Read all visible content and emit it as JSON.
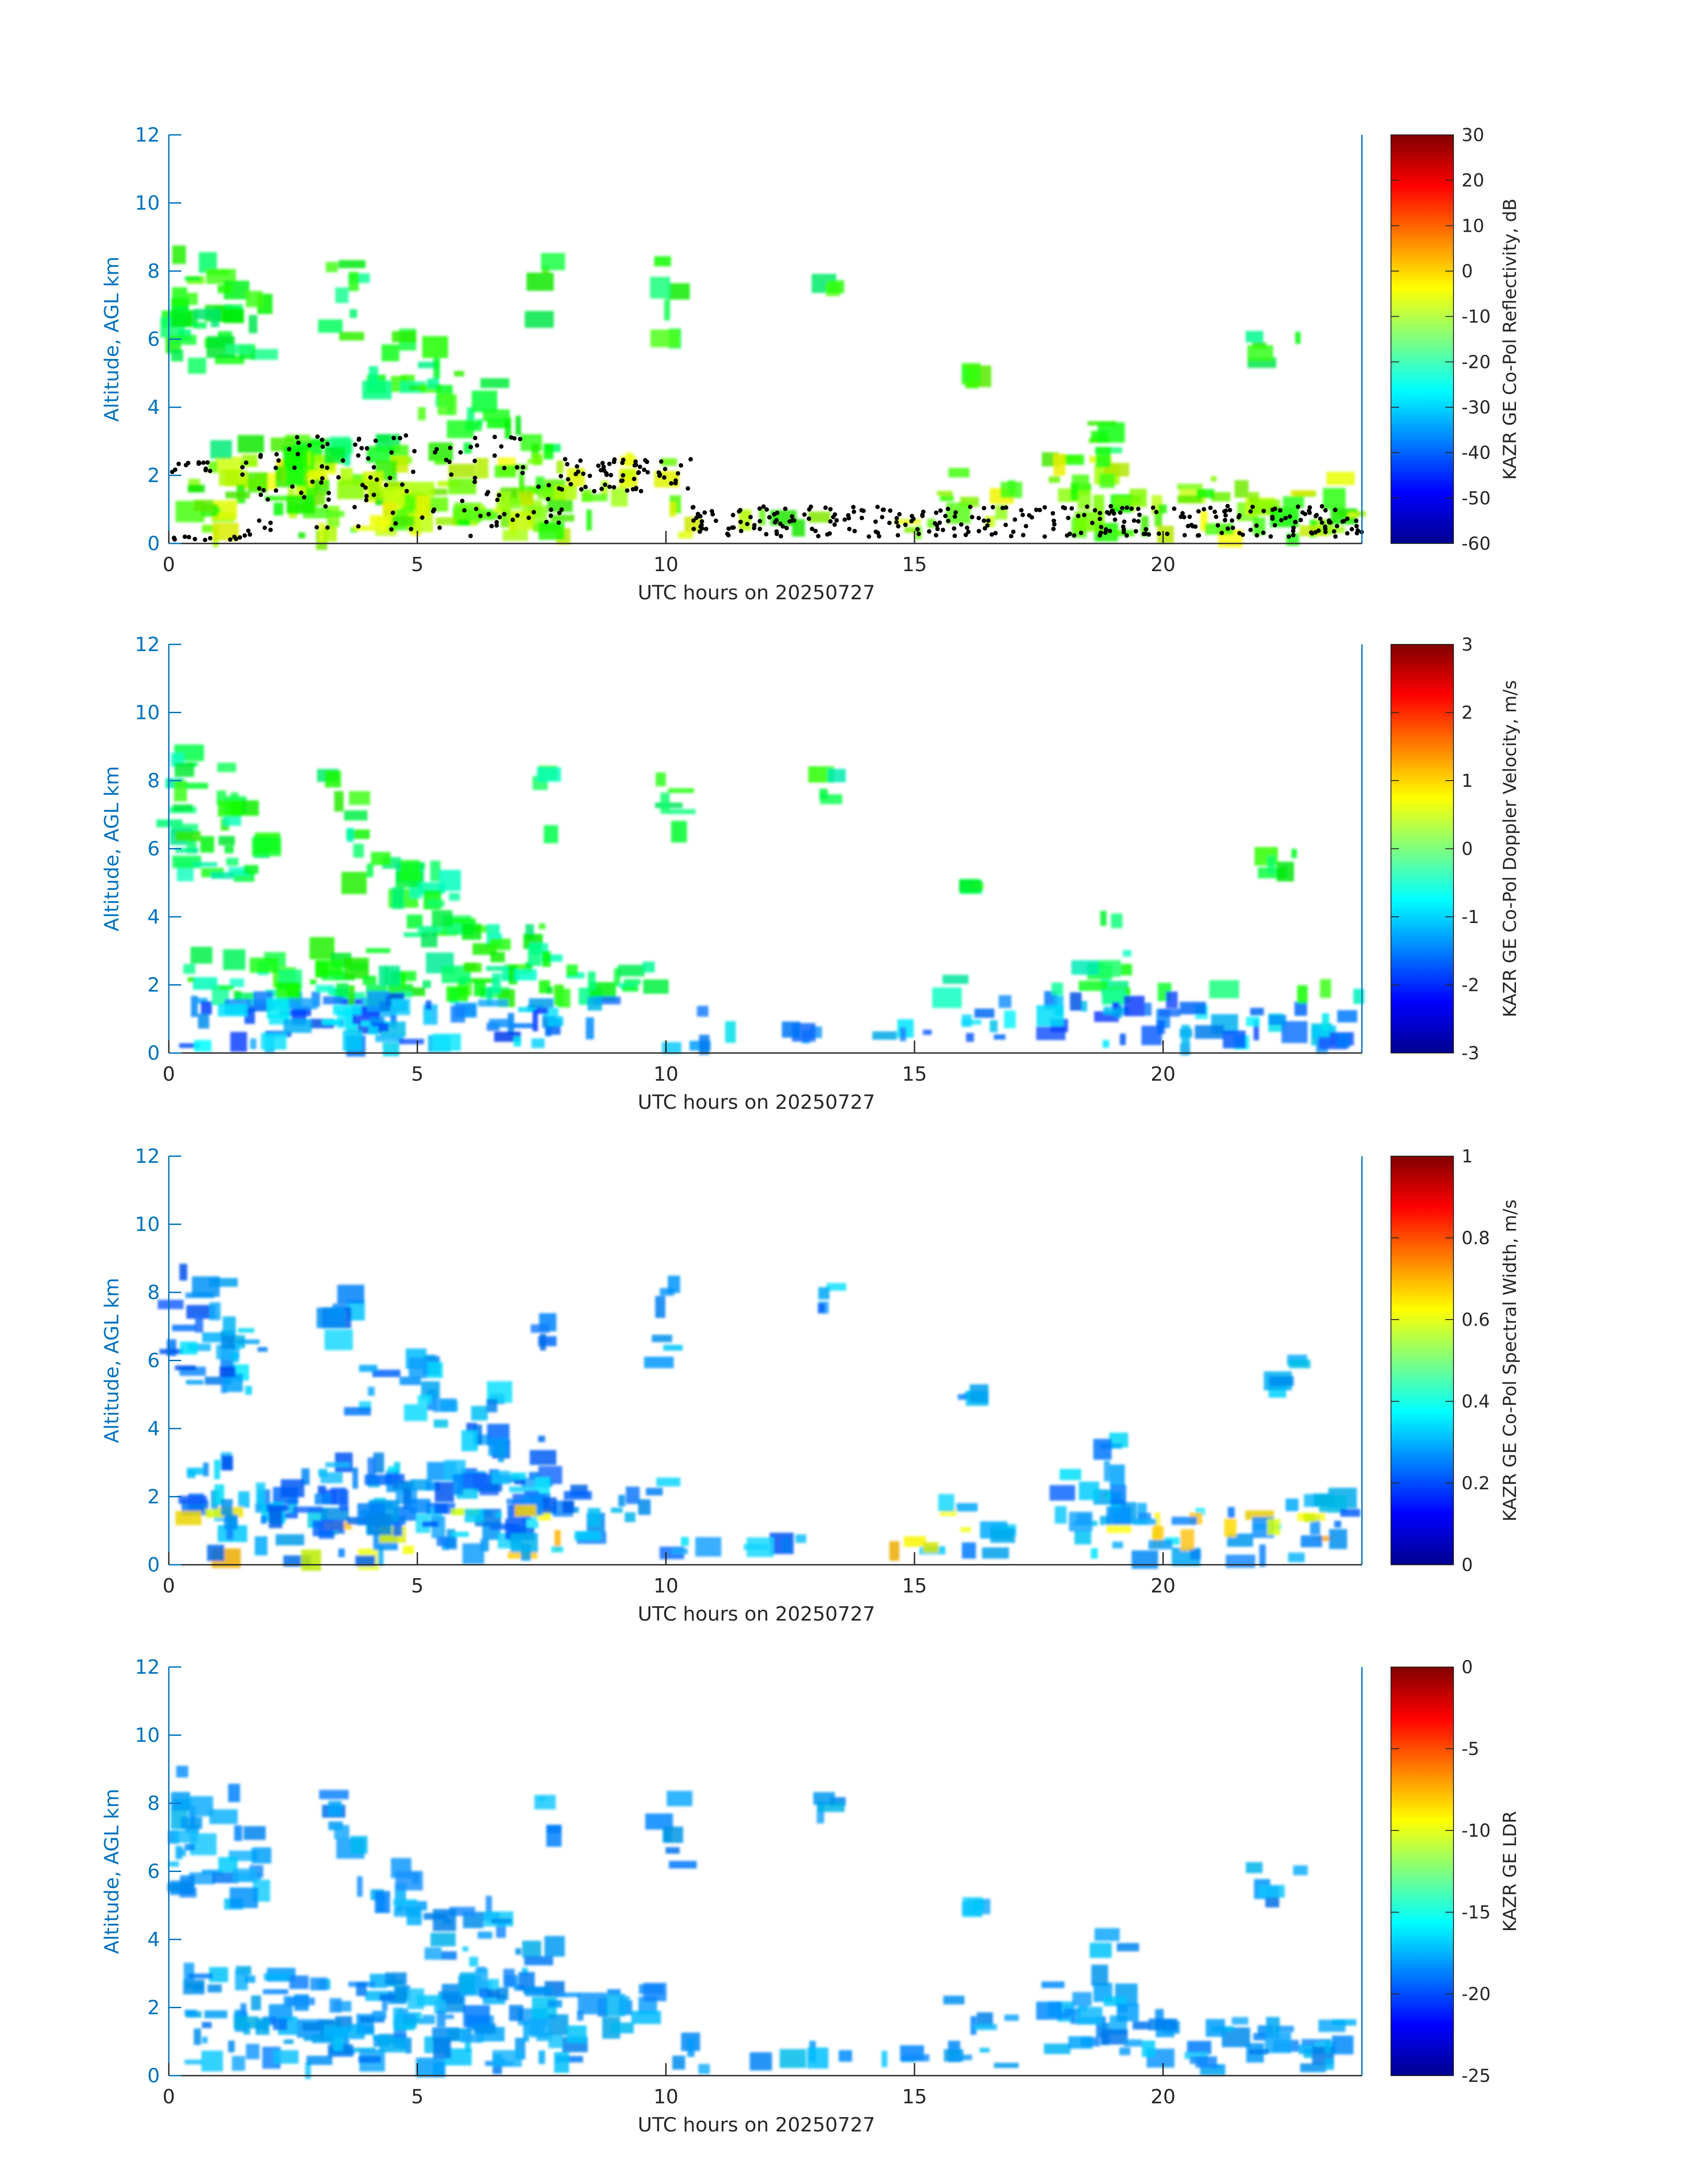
{
  "chart_data": [
    {
      "type": "heatmap",
      "title": "",
      "xlabel": "UTC hours on 20250727",
      "ylabel": "Altitude, AGL km",
      "xlim": [
        0,
        24
      ],
      "ylim": [
        0,
        12
      ],
      "xticks": [
        "0",
        "5",
        "10",
        "15",
        "20"
      ],
      "yticks": [
        "0",
        "2",
        "4",
        "6",
        "8",
        "10",
        "12"
      ],
      "colorbar": {
        "label": "KAZR GE Co-Pol Reflectivity, dB",
        "range": [
          -60,
          30
        ],
        "ticks": [
          "30",
          "20",
          "10",
          "0",
          "-10",
          "-20",
          "-30",
          "-40",
          "-50",
          "-60"
        ],
        "colormap": "jet"
      },
      "overlay": "cloud-base dots (black)"
    },
    {
      "type": "heatmap",
      "title": "",
      "xlabel": "UTC hours on 20250727",
      "ylabel": "Altitude, AGL km",
      "xlim": [
        0,
        24
      ],
      "ylim": [
        0,
        12
      ],
      "xticks": [
        "0",
        "5",
        "10",
        "15",
        "20"
      ],
      "yticks": [
        "0",
        "2",
        "4",
        "6",
        "8",
        "10",
        "12"
      ],
      "colorbar": {
        "label": "KAZR GE Co-Pol Doppler Velocity, m/s",
        "range": [
          -3,
          3
        ],
        "ticks": [
          "3",
          "2",
          "1",
          "0",
          "-1",
          "-2",
          "-3"
        ],
        "colormap": "jet"
      }
    },
    {
      "type": "heatmap",
      "title": "",
      "xlabel": "UTC hours on 20250727",
      "ylabel": "Altitude, AGL km",
      "xlim": [
        0,
        24
      ],
      "ylim": [
        0,
        12
      ],
      "xticks": [
        "0",
        "5",
        "10",
        "15",
        "20"
      ],
      "yticks": [
        "0",
        "2",
        "4",
        "6",
        "8",
        "10",
        "12"
      ],
      "colorbar": {
        "label": "KAZR GE Co-Pol Spectral Width, m/s",
        "range": [
          0,
          1
        ],
        "ticks": [
          "1",
          "0.8",
          "0.6",
          "0.4",
          "0.2",
          "0"
        ],
        "colormap": "jet"
      }
    },
    {
      "type": "heatmap",
      "title": "",
      "xlabel": "UTC hours on 20250727",
      "ylabel": "Altitude, AGL km",
      "xlim": [
        0,
        24
      ],
      "ylim": [
        0,
        12
      ],
      "xticks": [
        "0",
        "5",
        "10",
        "15",
        "20"
      ],
      "yticks": [
        "0",
        "2",
        "4",
        "6",
        "8",
        "10",
        "12"
      ],
      "colorbar": {
        "label": "KAZR GE LDR",
        "range": [
          -25,
          0
        ],
        "ticks": [
          "0",
          "-5",
          "-10",
          "-15",
          "-20",
          "-25"
        ],
        "colormap": "jet"
      }
    }
  ],
  "colors": {
    "axis_y": "#0072BD",
    "axis_text": "#262626",
    "background": "#ffffff",
    "overlay_dots": "#000000"
  }
}
